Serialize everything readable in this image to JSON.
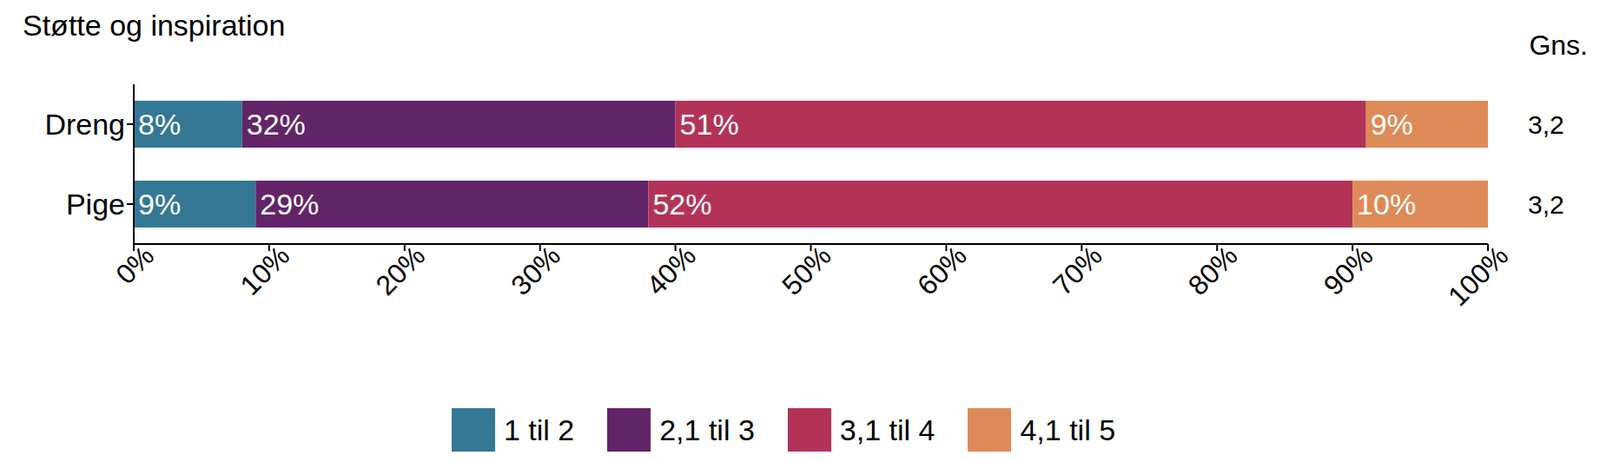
{
  "chart_data": {
    "type": "bar",
    "title": "Støtte og inspiration",
    "orientation": "horizontal",
    "stacked": true,
    "data_labels": true,
    "legend": "bottom",
    "categories": [
      "Dreng",
      "Pige"
    ],
    "xlim": [
      0,
      100
    ],
    "xticks": [
      {
        "value": 0,
        "label": "0%"
      },
      {
        "value": 10,
        "label": "10%"
      },
      {
        "value": 20,
        "label": "20%"
      },
      {
        "value": 30,
        "label": "30%"
      },
      {
        "value": 40,
        "label": "40%"
      },
      {
        "value": 50,
        "label": "50%"
      },
      {
        "value": 60,
        "label": "60%"
      },
      {
        "value": 70,
        "label": "70%"
      },
      {
        "value": 80,
        "label": "80%"
      },
      {
        "value": 90,
        "label": "90%"
      },
      {
        "value": 100,
        "label": "100%"
      }
    ],
    "series": [
      {
        "name": "1 til 2",
        "color": "#347896",
        "values": [
          8,
          9
        ],
        "value_labels": [
          "8%",
          "9%"
        ]
      },
      {
        "name": "2,1 til 3",
        "color": "#622567",
        "values": [
          32,
          29
        ],
        "value_labels": [
          "32%",
          "29%"
        ]
      },
      {
        "name": "3,1 til 4",
        "color": "#b33358",
        "values": [
          51,
          52
        ],
        "value_labels": [
          "51%",
          "52%"
        ]
      },
      {
        "name": "4,1 til 5",
        "color": "#de8a58",
        "values": [
          9,
          10
        ],
        "value_labels": [
          "9%",
          "10%"
        ]
      }
    ],
    "mean_label": "Gns.",
    "means": [
      3.2,
      3.2
    ],
    "mean_labels": [
      "3,2",
      "3,2"
    ]
  }
}
